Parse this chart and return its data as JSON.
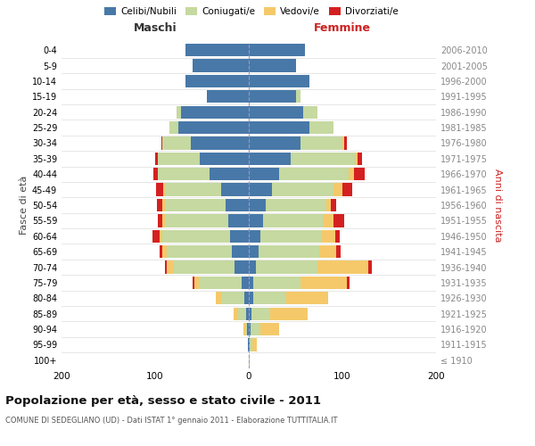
{
  "age_groups": [
    "100+",
    "95-99",
    "90-94",
    "85-89",
    "80-84",
    "75-79",
    "70-74",
    "65-69",
    "60-64",
    "55-59",
    "50-54",
    "45-49",
    "40-44",
    "35-39",
    "30-34",
    "25-29",
    "20-24",
    "15-19",
    "10-14",
    "5-9",
    "0-4"
  ],
  "birth_years": [
    "≤ 1910",
    "1911-1915",
    "1916-1920",
    "1921-1925",
    "1926-1930",
    "1931-1935",
    "1936-1940",
    "1941-1945",
    "1946-1950",
    "1951-1955",
    "1956-1960",
    "1961-1965",
    "1966-1970",
    "1971-1975",
    "1976-1980",
    "1981-1985",
    "1986-1990",
    "1991-1995",
    "1996-2000",
    "2001-2005",
    "2006-2010"
  ],
  "males_celibi": [
    0,
    1,
    2,
    3,
    5,
    8,
    15,
    18,
    20,
    22,
    25,
    30,
    42,
    52,
    62,
    75,
    72,
    45,
    68,
    60,
    68
  ],
  "males_coniugati": [
    0,
    0,
    2,
    8,
    25,
    45,
    65,
    70,
    72,
    68,
    65,
    60,
    55,
    45,
    30,
    10,
    5,
    0,
    0,
    0,
    0
  ],
  "males_vedovi": [
    0,
    0,
    2,
    5,
    5,
    5,
    8,
    4,
    3,
    2,
    2,
    1,
    0,
    0,
    0,
    0,
    0,
    0,
    0,
    0,
    0
  ],
  "males_divorziati": [
    0,
    0,
    0,
    0,
    0,
    2,
    2,
    3,
    8,
    5,
    6,
    8,
    5,
    3,
    1,
    0,
    0,
    0,
    0,
    0,
    0
  ],
  "fem_nubili": [
    0,
    1,
    2,
    3,
    5,
    5,
    8,
    10,
    12,
    15,
    18,
    25,
    32,
    45,
    55,
    65,
    58,
    50,
    65,
    50,
    60
  ],
  "fem_coniugate": [
    0,
    3,
    10,
    20,
    35,
    50,
    65,
    65,
    65,
    65,
    65,
    65,
    75,
    68,
    45,
    25,
    15,
    5,
    0,
    0,
    0
  ],
  "fem_vedove": [
    1,
    5,
    20,
    40,
    45,
    50,
    55,
    18,
    15,
    10,
    5,
    10,
    5,
    3,
    2,
    0,
    0,
    0,
    0,
    0,
    0
  ],
  "fem_divorziate": [
    0,
    0,
    0,
    0,
    0,
    3,
    3,
    5,
    5,
    12,
    5,
    10,
    12,
    5,
    3,
    0,
    0,
    0,
    0,
    0,
    0
  ],
  "colors": {
    "celibi": "#4878a8",
    "coniugati": "#c5d9a0",
    "vedovi": "#f5c96a",
    "divorziati": "#d42020"
  },
  "title": "Popolazione per età, sesso e stato civile - 2011",
  "subtitle": "COMUNE DI SEDEGLIANO (UD) - Dati ISTAT 1° gennaio 2011 - Elaborazione TUTTITALIA.IT",
  "legend_labels": [
    "Celibi/Nubili",
    "Coniugati/e",
    "Vedovi/e",
    "Divorziati/e"
  ],
  "maschi_label": "Maschi",
  "femmine_label": "Femmine",
  "ylabel_left": "Fasce di età",
  "ylabel_right": "Anni di nascita",
  "xlim": 200
}
